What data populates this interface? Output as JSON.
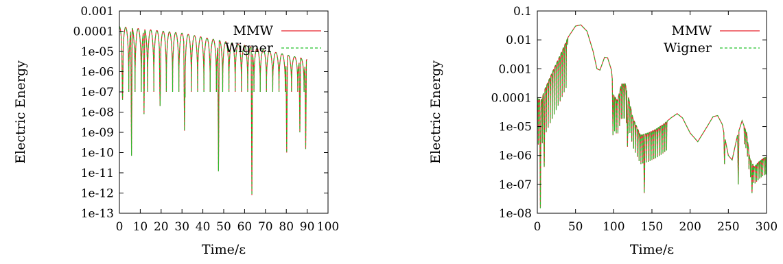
{
  "chart_data": [
    {
      "type": "line",
      "title": "",
      "xlabel": "Time/ε",
      "ylabel": "Electric Energy",
      "xlim": [
        0,
        100
      ],
      "ylim_log10": [
        -13,
        -3
      ],
      "yscale": "log",
      "grid": false,
      "legend_position": "top-right",
      "x_ticks": [
        "0",
        "10",
        "20",
        "30",
        "40",
        "50",
        "60",
        "70",
        "80",
        "90",
        "100"
      ],
      "y_ticks": [
        "1e-13",
        "1e-12",
        "1e-11",
        "1e-10",
        "1e-09",
        "1e-08",
        "1e-07",
        "1e-06",
        "1e-05",
        "0.0001",
        "0.001"
      ],
      "series": [
        {
          "name": "MMW",
          "color": "#e8202a",
          "dash": "solid"
        },
        {
          "name": "Wigner",
          "color": "#22c12a",
          "dash": "dashed"
        }
      ],
      "oscillation": {
        "x_start": 0,
        "x_end": 90,
        "period": 3.0,
        "peaks": [
          [
            0,
            0.00017
          ],
          [
            30,
            8e-05
          ],
          [
            60,
            2e-05
          ],
          [
            90,
            4e-06
          ]
        ],
        "min_floor": 1e-07,
        "deep_minima": [
          [
            1.5,
            4e-08
          ],
          [
            5.8,
            7e-11
          ],
          [
            11.8,
            8e-09
          ],
          [
            19.5,
            2e-08
          ],
          [
            31.2,
            1.2e-09
          ],
          [
            47.5,
            1.2e-11
          ],
          [
            63.5,
            8e-13
          ],
          [
            80.2,
            1e-10
          ],
          [
            86.5,
            1e-09
          ],
          [
            89.3,
            1.5e-10
          ]
        ]
      }
    },
    {
      "type": "line",
      "title": "",
      "xlabel": "Time/ε",
      "ylabel": "Electric Energy",
      "xlim": [
        0,
        300
      ],
      "ylim_log10": [
        -8,
        -1
      ],
      "yscale": "log",
      "grid": false,
      "legend_position": "top-right",
      "x_ticks": [
        "0",
        "50",
        "100",
        "150",
        "200",
        "250",
        "300"
      ],
      "y_ticks": [
        "1e-08",
        "1e-07",
        "1e-06",
        "1e-05",
        "0.0001",
        "0.001",
        "0.01",
        "0.1"
      ],
      "series": [
        {
          "name": "MMW",
          "color": "#e8202a",
          "dash": "solid"
        },
        {
          "name": "Wigner",
          "color": "#22c12a",
          "dash": "dashed"
        }
      ],
      "envelope": [
        [
          0,
          0.0001
        ],
        [
          5,
          8e-05
        ],
        [
          10,
          0.0002
        ],
        [
          20,
          0.0008
        ],
        [
          30,
          0.003
        ],
        [
          40,
          0.012
        ],
        [
          50,
          0.03
        ],
        [
          57,
          0.033
        ],
        [
          65,
          0.02
        ],
        [
          73,
          0.004
        ],
        [
          78,
          0.001
        ],
        [
          82,
          0.0009
        ],
        [
          88,
          0.0025
        ],
        [
          92,
          0.0024
        ],
        [
          97,
          0.0009
        ],
        [
          100,
          0.00012
        ],
        [
          105,
          8e-05
        ],
        [
          110,
          0.0003
        ],
        [
          115,
          0.0003
        ],
        [
          118,
          0.00015
        ],
        [
          125,
          2e-05
        ],
        [
          135,
          5e-06
        ],
        [
          145,
          6e-06
        ],
        [
          155,
          8e-06
        ],
        [
          165,
          1.2e-05
        ],
        [
          175,
          2e-05
        ],
        [
          183,
          2.8e-05
        ],
        [
          190,
          2e-05
        ],
        [
          200,
          6e-06
        ],
        [
          210,
          3e-06
        ],
        [
          220,
          8e-06
        ],
        [
          230,
          2.2e-05
        ],
        [
          236,
          2.4e-05
        ],
        [
          242,
          1.2e-05
        ],
        [
          250,
          1e-06
        ],
        [
          255,
          7e-07
        ],
        [
          262,
          5e-06
        ],
        [
          268,
          1.6e-05
        ],
        [
          274,
          6e-06
        ],
        [
          278,
          8e-07
        ],
        [
          284,
          4e-07
        ],
        [
          290,
          6e-07
        ],
        [
          296,
          8e-07
        ],
        [
          300,
          9e-07
        ]
      ],
      "oscillations": [
        {
          "x_start": 0,
          "x_end": 40,
          "period": 2.6,
          "min_log_depth": 1.6
        },
        {
          "x_start": 100,
          "x_end": 120,
          "period": 2.2,
          "min_log_depth": 1.2
        },
        {
          "x_start": 120,
          "x_end": 170,
          "period": 2.4,
          "min_log_depth": 1.0
        },
        {
          "x_start": 270,
          "x_end": 300,
          "period": 2.0,
          "min_log_depth": 0.6
        }
      ],
      "deep_minima": [
        [
          4,
          1.5e-08
        ],
        [
          9,
          4e-07
        ],
        [
          99,
          5e-06
        ],
        [
          118,
          2e-06
        ],
        [
          140,
          5e-08
        ],
        [
          245,
          5e-07
        ],
        [
          263,
          1e-07
        ],
        [
          281,
          5e-08
        ]
      ]
    }
  ]
}
